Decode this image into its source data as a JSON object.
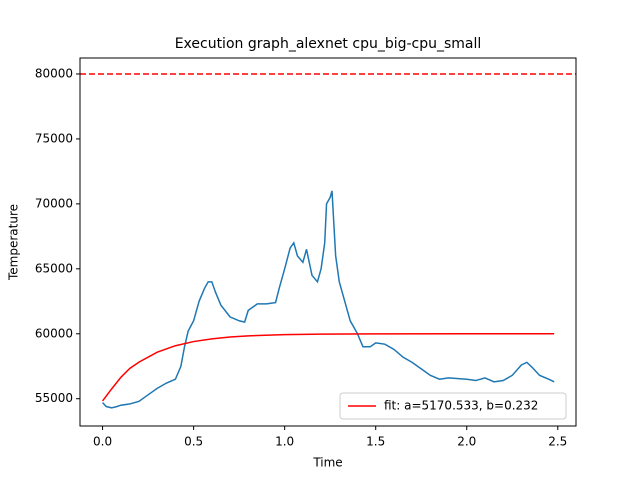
{
  "chart_data": {
    "type": "line",
    "title": "Execution graph_alexnet cpu_big-cpu_small",
    "xlabel": "Time",
    "ylabel": "Temperature",
    "xlim": [
      -0.124,
      2.6
    ],
    "ylim": [
      52900,
      81230
    ],
    "xticks": [
      {
        "value": 0,
        "label": "0.0"
      },
      0.5,
      {
        "value": 1,
        "label": "1.0"
      },
      1.5,
      {
        "value": 2,
        "label": "2.0"
      },
      2.5
    ],
    "yticks": [
      55000,
      60000,
      65000,
      70000,
      75000,
      80000
    ],
    "legend": "lower right",
    "hlines": [
      {
        "value": 80000,
        "color": "#ff0000",
        "linestyle": "dashed"
      }
    ],
    "series": [
      {
        "color": "#1f77b4",
        "x": [
          0,
          0.02,
          0.05,
          0.08,
          0.1,
          0.15,
          0.2,
          0.25,
          0.3,
          0.35,
          0.4,
          0.43,
          0.45,
          0.47,
          0.5,
          0.53,
          0.56,
          0.58,
          0.6,
          0.62,
          0.65,
          0.7,
          0.75,
          0.78,
          0.8,
          0.85,
          0.9,
          0.95,
          0.97,
          1.0,
          1.03,
          1.05,
          1.07,
          1.1,
          1.12,
          1.15,
          1.18,
          1.2,
          1.22,
          1.23,
          1.25,
          1.26,
          1.28,
          1.3,
          1.33,
          1.36,
          1.4,
          1.43,
          1.47,
          1.5,
          1.55,
          1.6,
          1.65,
          1.7,
          1.75,
          1.8,
          1.85,
          1.9,
          2.0,
          2.05,
          2.1,
          2.15,
          2.2,
          2.25,
          2.3,
          2.33,
          2.36,
          2.4,
          2.45,
          2.48
        ],
        "values": [
          54700,
          54400,
          54300,
          54400,
          54500,
          54600,
          54800,
          55300,
          55800,
          56200,
          56500,
          57500,
          59000,
          60200,
          61000,
          62500,
          63500,
          64000,
          64000,
          63200,
          62200,
          61300,
          61000,
          60900,
          61800,
          62300,
          62300,
          62400,
          63500,
          65000,
          66600,
          67000,
          66000,
          65500,
          66500,
          64500,
          64000,
          65000,
          67000,
          70000,
          70500,
          71000,
          66000,
          64000,
          62500,
          61000,
          60000,
          59000,
          59000,
          59300,
          59200,
          58800,
          58200,
          57800,
          57300,
          56800,
          56500,
          56600,
          56500,
          56400,
          56600,
          56300,
          56400,
          56800,
          57600,
          57800,
          57400,
          56800,
          56500,
          56300
        ]
      },
      {
        "name": "fit: a=5170.533, b=0.232",
        "color": "#ff0000",
        "x": [
          0,
          0.05,
          0.1,
          0.15,
          0.2,
          0.3,
          0.4,
          0.5,
          0.6,
          0.7,
          0.8,
          1.0,
          1.2,
          1.5,
          2.0,
          2.48
        ],
        "values": [
          54830,
          55760,
          56640,
          57340,
          57820,
          58580,
          59080,
          59400,
          59610,
          59750,
          59840,
          59930,
          59970,
          59990,
          60000,
          60000
        ]
      }
    ]
  }
}
